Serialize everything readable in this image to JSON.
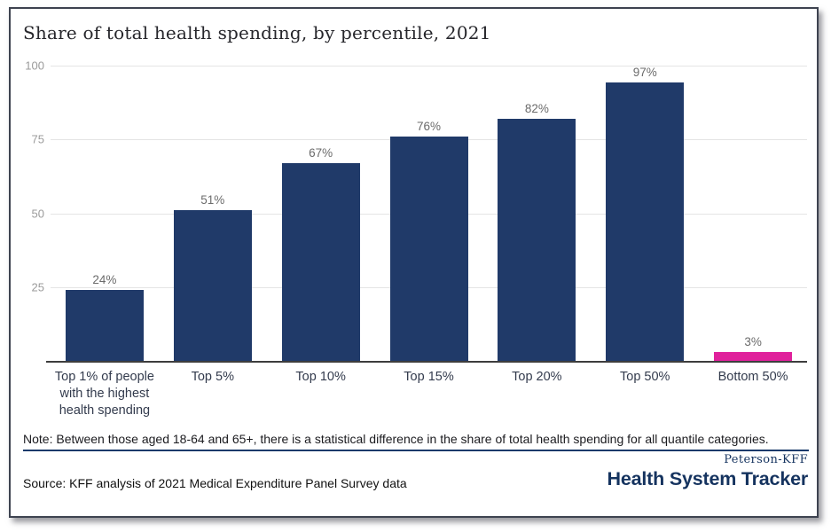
{
  "title": "Share of total health spending, by percentile, 2021",
  "chart_data": {
    "type": "bar",
    "categories": [
      "Top 1% of people with the highest health spending",
      "Top 5%",
      "Top 10%",
      "Top 15%",
      "Top 20%",
      "Top 50%",
      "Bottom 50%"
    ],
    "values": [
      24,
      51,
      67,
      76,
      82,
      97,
      3
    ],
    "value_labels": [
      "24%",
      "51%",
      "67%",
      "76%",
      "82%",
      "97%",
      "3%"
    ],
    "bar_colors": [
      "#203a69",
      "#203a69",
      "#203a69",
      "#203a69",
      "#203a69",
      "#203a69",
      "#e0219c"
    ],
    "title": "Share of total health spending, by percentile, 2021",
    "xlabel": "",
    "ylabel": "",
    "ylim": [
      0,
      100
    ],
    "yticks": [
      25,
      50,
      75,
      100
    ],
    "grid": true,
    "legend": false
  },
  "note": "Note: Between those aged 18-64 and 65+, there is a statistical difference in the share of total health spending for all quantile categories.",
  "source": "Source: KFF analysis of 2021 Medical Expenditure Panel Survey data",
  "branding": {
    "org": "Peterson-KFF",
    "name": "Health System Tracker"
  },
  "colors": {
    "bar_navy": "#203a69",
    "bar_pink": "#e0219c",
    "divider_navy": "#1a3a6b",
    "gridline": "#e4e4e4",
    "axis_line": "#3d3d3d",
    "ytick_label": "#9b9b9b",
    "value_label": "#6b6b6b",
    "category_label": "#333b4d"
  }
}
